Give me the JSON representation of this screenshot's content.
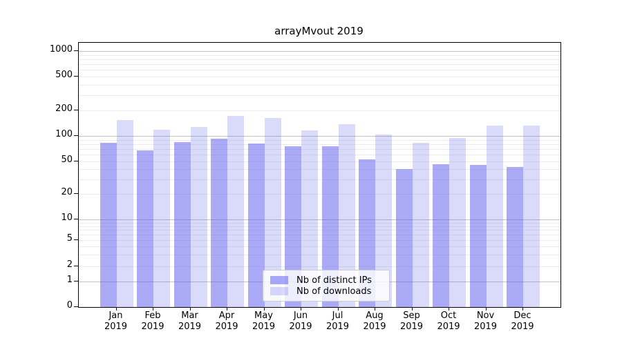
{
  "title": "arrayMvout 2019",
  "legend": {
    "items": [
      {
        "label": "Nb of distinct IPs"
      },
      {
        "label": "Nb of downloads"
      }
    ]
  },
  "colors": {
    "bar_distinct_ips": "rgba(85,85,238,0.5)",
    "bar_downloads": "rgba(85,85,238,0.215)",
    "gridline_major": "#c3c3c3",
    "gridline_minor": "#ececec",
    "axis": "#000000"
  },
  "chart_data": {
    "type": "bar",
    "title": "arrayMvout 2019",
    "categories": [
      "Jan 2019",
      "Feb 2019",
      "Mar 2019",
      "Apr 2019",
      "May 2019",
      "Jun 2019",
      "Jul 2019",
      "Aug 2019",
      "Sep 2019",
      "Oct 2019",
      "Nov 2019",
      "Dec 2019"
    ],
    "series": [
      {
        "name": "Nb of distinct IPs",
        "color": "rgba(85,85,238,0.5)",
        "values": [
          83,
          67,
          84,
          92,
          82,
          76,
          76,
          53,
          40,
          46,
          45,
          43
        ]
      },
      {
        "name": "Nb of downloads",
        "color": "rgba(85,85,238,0.215)",
        "values": [
          155,
          118,
          127,
          172,
          162,
          117,
          138,
          104,
          83,
          94,
          132,
          132
        ]
      }
    ],
    "xlabel": "",
    "ylabel": "",
    "y_scale": "log-like (0, then log decades 1-1000)",
    "y_ticks": [
      0,
      1,
      2,
      5,
      10,
      20,
      50,
      100,
      200,
      500,
      1000
    ],
    "ylim": [
      0,
      1250
    ],
    "grid": true,
    "legend_position": "lower center"
  }
}
